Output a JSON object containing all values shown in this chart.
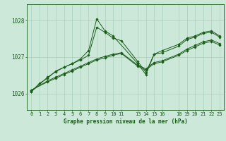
{
  "background_color": "#cce8d8",
  "grid_color": "#aacfbc",
  "line_color": "#1a5c1a",
  "title": "Graphe pression niveau de la mer (hPa)",
  "xlim": [
    -0.5,
    23.5
  ],
  "ylim": [
    1025.55,
    1028.45
  ],
  "yticks": [
    1026,
    1027,
    1028
  ],
  "xticks": [
    0,
    1,
    2,
    3,
    4,
    5,
    6,
    7,
    8,
    9,
    10,
    11,
    13,
    14,
    15,
    16,
    18,
    19,
    20,
    21,
    22,
    23
  ],
  "xtick_labels": [
    "0",
    "1",
    "2",
    "3",
    "4",
    "5",
    "6",
    "7",
    "8",
    "9",
    "10",
    "11",
    "13",
    "14",
    "15",
    "16",
    "18",
    "19",
    "20",
    "21",
    "22",
    "23"
  ],
  "s1_x": [
    0,
    1,
    2,
    3,
    4,
    5,
    6,
    7,
    8,
    9,
    10,
    13,
    14,
    15,
    16,
    18,
    19,
    20,
    21,
    22,
    23
  ],
  "s1_y": [
    1026.05,
    1026.28,
    1026.42,
    1026.62,
    1026.72,
    1026.82,
    1026.95,
    1027.18,
    1028.05,
    1027.72,
    1027.58,
    1026.82,
    1026.52,
    1027.08,
    1027.18,
    1027.35,
    1027.52,
    1027.58,
    1027.68,
    1027.72,
    1027.58
  ],
  "s2_x": [
    0,
    2,
    3,
    4,
    5,
    6,
    7,
    8,
    9,
    10,
    11,
    13,
    14,
    15,
    16,
    18,
    19,
    20,
    21,
    22,
    23
  ],
  "s2_y": [
    1026.05,
    1026.45,
    1026.6,
    1026.72,
    1026.82,
    1026.92,
    1027.05,
    1027.82,
    1027.68,
    1027.52,
    1027.45,
    1026.88,
    1026.58,
    1027.08,
    1027.12,
    1027.3,
    1027.48,
    1027.55,
    1027.65,
    1027.68,
    1027.55
  ],
  "s3_x": [
    0,
    2,
    3,
    4,
    5,
    6,
    7,
    8,
    9,
    10,
    11,
    13,
    14,
    15,
    16,
    18,
    19,
    20,
    21,
    22,
    23
  ],
  "s3_y": [
    1026.08,
    1026.35,
    1026.45,
    1026.55,
    1026.65,
    1026.75,
    1026.85,
    1026.95,
    1027.02,
    1027.08,
    1027.12,
    1026.78,
    1026.68,
    1026.85,
    1026.9,
    1027.08,
    1027.22,
    1027.32,
    1027.42,
    1027.47,
    1027.37
  ],
  "s4_x": [
    0,
    2,
    3,
    4,
    5,
    6,
    7,
    8,
    9,
    10,
    11,
    13,
    14,
    15,
    16,
    18,
    19,
    20,
    21,
    22,
    23
  ],
  "s4_y": [
    1026.1,
    1026.32,
    1026.42,
    1026.52,
    1026.62,
    1026.72,
    1026.82,
    1026.92,
    1026.98,
    1027.05,
    1027.1,
    1026.75,
    1026.65,
    1026.82,
    1026.87,
    1027.05,
    1027.18,
    1027.28,
    1027.38,
    1027.43,
    1027.33
  ]
}
